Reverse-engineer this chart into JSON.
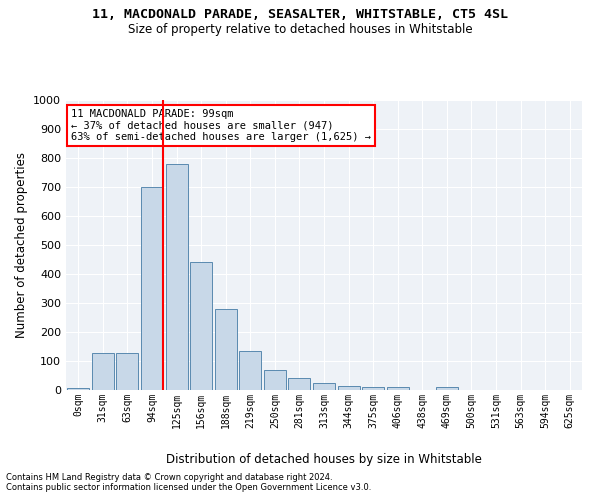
{
  "title1": "11, MACDONALD PARADE, SEASALTER, WHITSTABLE, CT5 4SL",
  "title2": "Size of property relative to detached houses in Whitstable",
  "xlabel": "Distribution of detached houses by size in Whitstable",
  "ylabel": "Number of detached properties",
  "bin_labels": [
    "0sqm",
    "31sqm",
    "63sqm",
    "94sqm",
    "125sqm",
    "156sqm",
    "188sqm",
    "219sqm",
    "250sqm",
    "281sqm",
    "313sqm",
    "344sqm",
    "375sqm",
    "406sqm",
    "438sqm",
    "469sqm",
    "500sqm",
    "531sqm",
    "563sqm",
    "594sqm",
    "625sqm"
  ],
  "bar_values": [
    8,
    128,
    128,
    700,
    778,
    442,
    278,
    135,
    70,
    42,
    25,
    15,
    10,
    10,
    0,
    10,
    0,
    0,
    0,
    0,
    0
  ],
  "bar_color": "#c8d8e8",
  "bar_edge_color": "#5a8ab0",
  "annotation_text": "11 MACDONALD PARADE: 99sqm\n← 37% of detached houses are smaller (947)\n63% of semi-detached houses are larger (1,625) →",
  "annotation_box_color": "white",
  "annotation_box_edge_color": "red",
  "vline_color": "red",
  "ylim": [
    0,
    1000
  ],
  "yticks": [
    0,
    100,
    200,
    300,
    400,
    500,
    600,
    700,
    800,
    900,
    1000
  ],
  "footer1": "Contains HM Land Registry data © Crown copyright and database right 2024.",
  "footer2": "Contains public sector information licensed under the Open Government Licence v3.0.",
  "plot_bg_color": "#eef2f7"
}
